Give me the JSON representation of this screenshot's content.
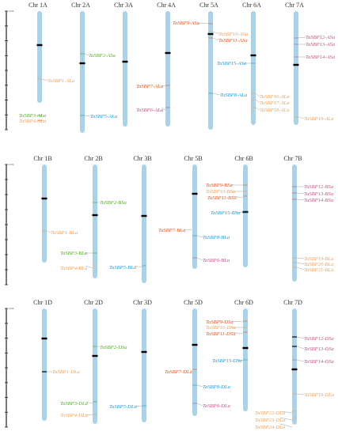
{
  "scale_label": "0 Mb",
  "colors": {
    "chromosome": "#aad3e8",
    "centromere": "#000000",
    "green": "#5aaa2c",
    "orange": "#f4a05a",
    "red": "#e8531e",
    "blue": "#1c9ad6",
    "purple": "#c5528a",
    "black": "#000000"
  },
  "panels": [
    {
      "id": "A",
      "chromosomes": [
        {
          "id": "1A",
          "title": "Chr 1A",
          "genes": [
            {
              "label": "TaSBP1-ALa",
              "color": "orange"
            },
            {
              "label": "TaSBP3-ALa",
              "color": "green"
            },
            {
              "label": "TaSBP4-ALa",
              "color": "orange"
            }
          ]
        },
        {
          "id": "2A",
          "title": "Chr 2A",
          "genes": [
            {
              "label": "TaSBP2-ASa",
              "color": "green"
            },
            {
              "label": "TaSBP5-ALa",
              "color": "blue"
            }
          ]
        },
        {
          "id": "3A",
          "title": "Chr 3A",
          "genes": []
        },
        {
          "id": "4A",
          "title": "Chr 4A",
          "genes": [
            {
              "label": "TaSBP7-ALa",
              "color": "red"
            },
            {
              "label": "TaSBP6-ALa",
              "color": "purple"
            }
          ]
        },
        {
          "id": "5A",
          "title": "Chr 5A",
          "genes": [
            {
              "label": "TaSBP9-ASa",
              "color": "red"
            },
            {
              "label": "TaSBP10-ASa",
              "color": "orange"
            },
            {
              "label": "TaSBP11-ASa",
              "color": "red"
            },
            {
              "label": "TaSBP8-ALa",
              "color": "blue"
            }
          ]
        },
        {
          "id": "6A",
          "title": "Chr 6A",
          "genes": [
            {
              "label": "TaSBP15-ASa",
              "color": "blue"
            },
            {
              "label": "TaSBP16-ALa",
              "color": "orange"
            },
            {
              "label": "TaSBP17-ALa",
              "color": "orange"
            },
            {
              "label": "TaSBP18-ALa",
              "color": "orange"
            }
          ]
        },
        {
          "id": "7A",
          "title": "Chr 7A",
          "genes": [
            {
              "label": "TaSBP12-ASa",
              "color": "purple"
            },
            {
              "label": "TaSBP13-ASa",
              "color": "purple"
            },
            {
              "label": "TaSBP14-ASa",
              "color": "purple"
            },
            {
              "label": "TaSBP19-ALa",
              "color": "orange"
            }
          ]
        }
      ]
    },
    {
      "id": "B",
      "chromosomes": [
        {
          "id": "1B",
          "title": "Chr 1B",
          "genes": [
            {
              "label": "TaSBP1-BLa",
              "color": "orange"
            }
          ]
        },
        {
          "id": "2B",
          "title": "Chr 2B",
          "genes": [
            {
              "label": "TaSBP2-BSa",
              "color": "green"
            },
            {
              "label": "TaSBP3-BLa",
              "color": "green"
            },
            {
              "label": "TaSBP4-BLa",
              "color": "orange"
            }
          ]
        },
        {
          "id": "3B",
          "title": "Chr 3B",
          "genes": [
            {
              "label": "TaSBP5-BLa",
              "color": "blue"
            }
          ]
        },
        {
          "id": "4B",
          "title": "",
          "genes": [
            {
              "label": "TaSBP7-BLa",
              "color": "red"
            }
          ]
        },
        {
          "id": "5B",
          "title": "Chr 5B",
          "genes": [
            {
              "label": "TaSBP8-BLa",
              "color": "blue"
            },
            {
              "label": "TaSBP6-BLa",
              "color": "purple"
            }
          ]
        },
        {
          "id": "6B",
          "title": "Chr 6B",
          "genes": [
            {
              "label": "TaSBP9-BSa",
              "color": "red"
            },
            {
              "label": "TaSBP10-BSa",
              "color": "orange"
            },
            {
              "label": "TaSBP11-BSa",
              "color": "red"
            },
            {
              "label": "TaSBP15-BSa",
              "color": "blue"
            }
          ]
        },
        {
          "id": "7B",
          "title": "Chr 7B",
          "genes": [
            {
              "label": "TaSBP12-BSa",
              "color": "purple"
            },
            {
              "label": "TaSBP13-BSa",
              "color": "purple"
            },
            {
              "label": "TaSBP14-BSa",
              "color": "purple"
            },
            {
              "label": "TaSBP19-BLa",
              "color": "orange"
            },
            {
              "label": "TaSBP20-BLa",
              "color": "orange"
            },
            {
              "label": "TaSBP21-BLa",
              "color": "orange"
            }
          ]
        }
      ]
    },
    {
      "id": "D",
      "chromosomes": [
        {
          "id": "1D",
          "title": "Chr 1D",
          "genes": [
            {
              "label": "TaSBP1-DLa",
              "color": "orange"
            }
          ]
        },
        {
          "id": "2D",
          "title": "Chr 2D",
          "genes": [
            {
              "label": "TaSBP2-DSa",
              "color": "green"
            },
            {
              "label": "TaSBP3-DLa",
              "color": "green"
            },
            {
              "label": "TaSBP4-DLa",
              "color": "orange"
            }
          ]
        },
        {
          "id": "3D",
          "title": "Chr 3D",
          "genes": [
            {
              "label": "TaSBP5-DLa",
              "color": "blue"
            }
          ]
        },
        {
          "id": "5D",
          "title": "Chr 5D",
          "genes": [
            {
              "label": "TaSBP7-DLa",
              "color": "red"
            },
            {
              "label": "TaSBP8-DLa",
              "color": "blue"
            },
            {
              "label": "TaSBP6-DLa",
              "color": "purple"
            }
          ]
        },
        {
          "id": "6D",
          "title": "Chr 6D",
          "genes": [
            {
              "label": "TaSBP9-DSa",
              "color": "red"
            },
            {
              "label": "TaSBP10-DSa",
              "color": "orange"
            },
            {
              "label": "TaSBP11-DSa",
              "color": "red"
            },
            {
              "label": "TaSBP15-DSa",
              "color": "blue"
            }
          ]
        },
        {
          "id": "7D",
          "title": "Chr 7D",
          "genes": [
            {
              "label": "TaSBP12-DSa",
              "color": "purple"
            },
            {
              "label": "TaSBP13-DSa",
              "color": "purple"
            },
            {
              "label": "TaSBP14-DSa",
              "color": "purple"
            },
            {
              "label": "TaSBP19-DLa",
              "color": "orange"
            },
            {
              "label": "TaSBP22-DLa",
              "color": "orange"
            },
            {
              "label": "TaSBP23-DLa",
              "color": "orange"
            },
            {
              "label": "TaSBP24-DLa",
              "color": "orange"
            }
          ]
        }
      ]
    }
  ]
}
